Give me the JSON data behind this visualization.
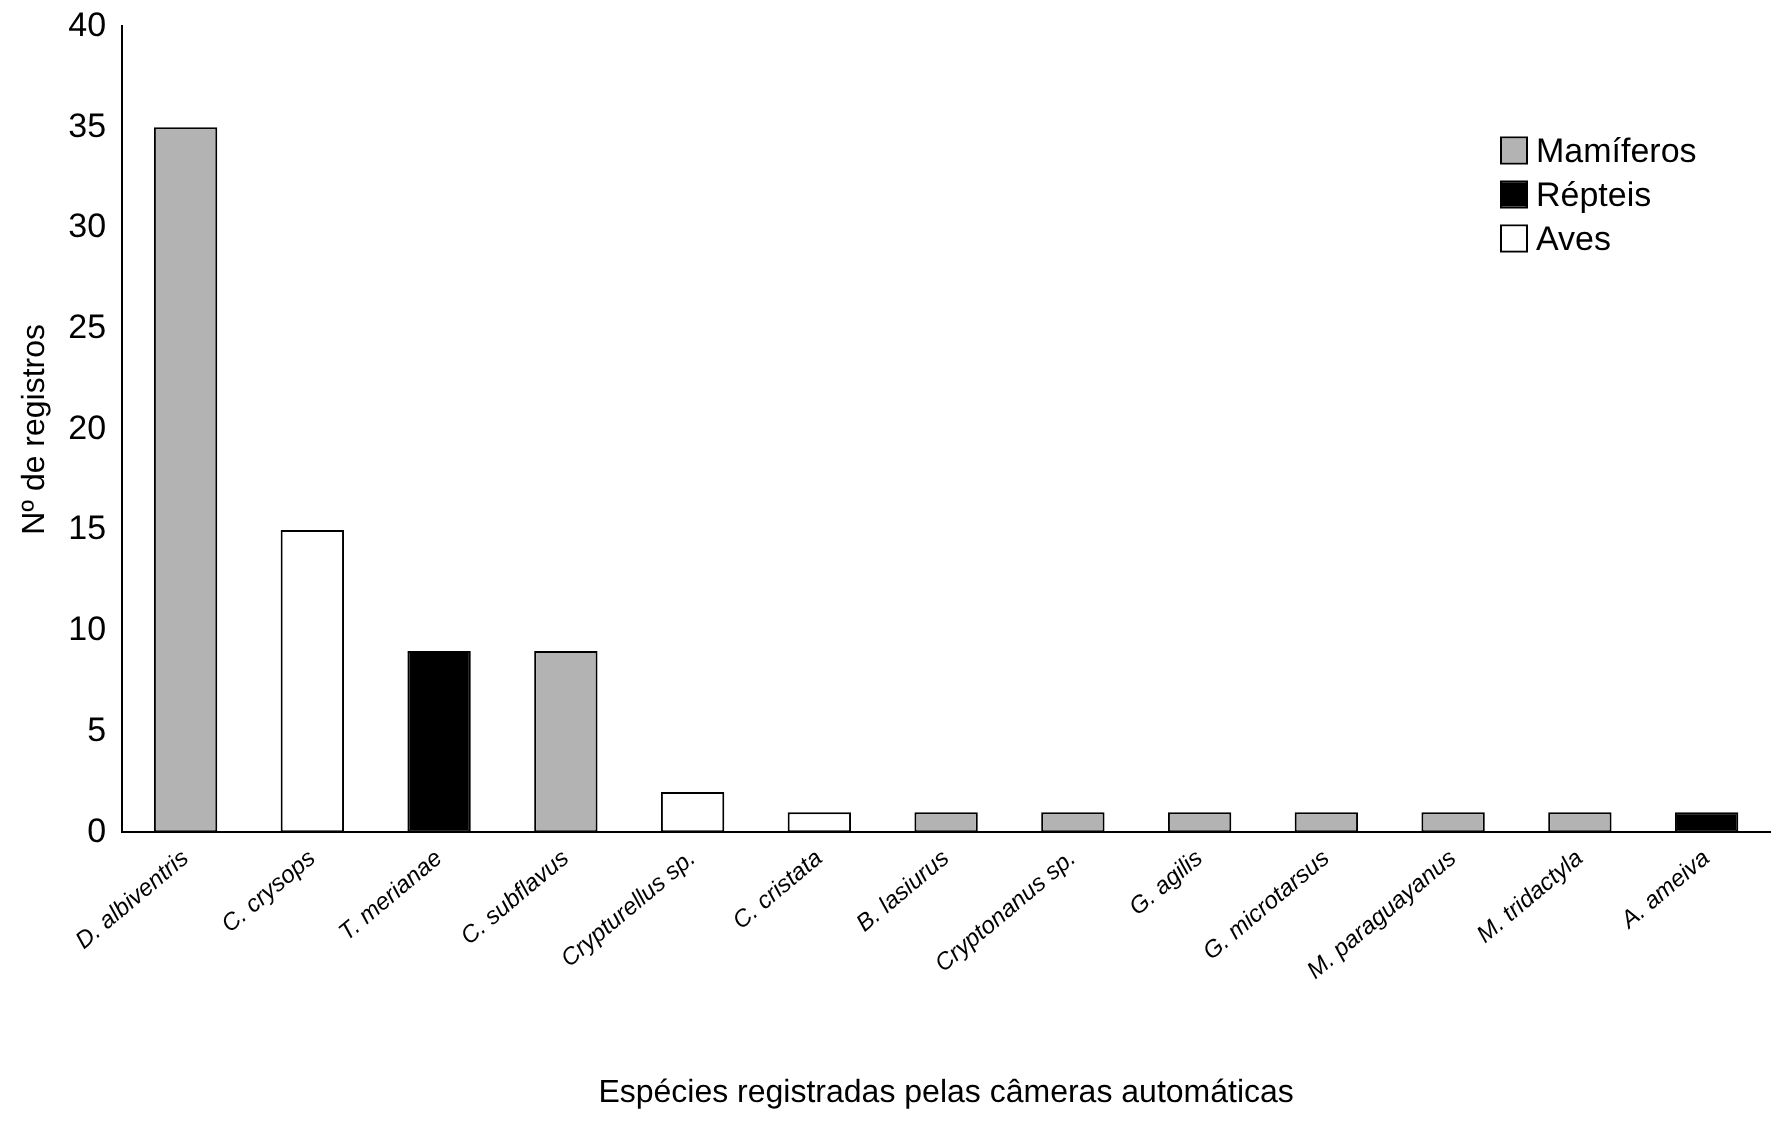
{
  "chart_data": {
    "type": "bar",
    "stacked": true,
    "xlabel": "Espécies registradas pelas câmeras automáticas",
    "ylabel": "Nº de registros",
    "categories": [
      "D. albiventris",
      "C. crysops",
      "T. merianae",
      "C. subflavus",
      "Crypturellus sp.",
      "C. cristata",
      "B. lasiurus",
      "Cryptonanus sp.",
      "G. agilis",
      "G. microtarsus",
      "M. paraguayanus",
      "M. tridactyla",
      "A. ameiva"
    ],
    "series": [
      {
        "name": "Mamíferos",
        "color": "#b3b3b3",
        "values": [
          35,
          null,
          null,
          9,
          null,
          null,
          1,
          1,
          1,
          1,
          1,
          1,
          null
        ]
      },
      {
        "name": "Répteis",
        "color": "#000000",
        "values": [
          null,
          null,
          9,
          null,
          null,
          null,
          null,
          null,
          null,
          null,
          null,
          null,
          1
        ]
      },
      {
        "name": "Aves",
        "color": "#ffffff",
        "values": [
          null,
          15,
          null,
          null,
          2,
          1,
          null,
          null,
          null,
          null,
          null,
          null,
          null
        ]
      }
    ],
    "ylim": [
      0,
      40
    ],
    "yticks": [
      0,
      5,
      10,
      15,
      20,
      25,
      30,
      35,
      40
    ],
    "grid": false,
    "legend": "top right"
  }
}
